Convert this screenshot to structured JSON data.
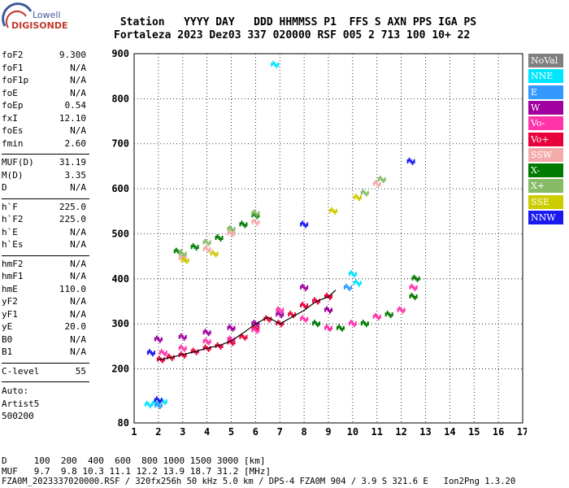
{
  "logo": {
    "line1": "Lowell",
    "line2": "DIGISONDE"
  },
  "header": {
    "labels": [
      "Station",
      "YYYY",
      "DAY",
      "DDD",
      "HHMMSS",
      "P1",
      "FFS",
      "S",
      "AXN",
      "PPS",
      "IGA",
      "PS"
    ],
    "values": [
      "Fortaleza",
      "2023",
      "Dez03",
      "337",
      "020000",
      "RSF",
      "005",
      "2",
      "713",
      "100",
      "10+",
      "22"
    ]
  },
  "params": {
    "group1": [
      {
        "name": "foF2",
        "value": "9.300"
      },
      {
        "name": "foF1",
        "value": "N/A"
      },
      {
        "name": "foF1p",
        "value": "N/A"
      },
      {
        "name": "foE",
        "value": "N/A"
      },
      {
        "name": "foEp",
        "value": "0.54"
      },
      {
        "name": "fxI",
        "value": "12.10"
      },
      {
        "name": "foEs",
        "value": "N/A"
      },
      {
        "name": "fmin",
        "value": "2.60"
      }
    ],
    "group2": [
      {
        "name": "MUF(D)",
        "value": "31.19"
      },
      {
        "name": "M(D)",
        "value": "3.35"
      },
      {
        "name": "D",
        "value": "N/A"
      }
    ],
    "group3": [
      {
        "name": "h`F",
        "value": "225.0"
      },
      {
        "name": "h`F2",
        "value": "225.0"
      },
      {
        "name": "h`E",
        "value": "N/A"
      },
      {
        "name": "h`Es",
        "value": "N/A"
      }
    ],
    "group4": [
      {
        "name": "hmF2",
        "value": "N/A"
      },
      {
        "name": "hmF1",
        "value": "N/A"
      },
      {
        "name": "hmE",
        "value": "110.0"
      },
      {
        "name": "yF2",
        "value": "N/A"
      },
      {
        "name": "yF1",
        "value": "N/A"
      },
      {
        "name": "yE",
        "value": "20.0"
      },
      {
        "name": "B0",
        "value": "N/A"
      },
      {
        "name": "B1",
        "value": "N/A"
      }
    ],
    "group5": [
      {
        "name": "C-level",
        "value": "55"
      }
    ],
    "auto": [
      "Auto:",
      "Artist5",
      "500200"
    ]
  },
  "legend": [
    {
      "label": "NoVal",
      "color": "#808080"
    },
    {
      "label": "NNE",
      "color": "#00e5ff"
    },
    {
      "label": "E",
      "color": "#3399ff"
    },
    {
      "label": "W",
      "color": "#a0009e"
    },
    {
      "label": "Vo-",
      "color": "#ff33aa"
    },
    {
      "label": "Vo+",
      "color": "#e8003a"
    },
    {
      "label": "SSW",
      "color": "#f4aaaa"
    },
    {
      "label": "X-",
      "color": "#007a00"
    },
    {
      "label": "X+",
      "color": "#88bb66"
    },
    {
      "label": "SSE",
      "color": "#cccc00"
    },
    {
      "label": "NNW",
      "color": "#1a1aee"
    }
  ],
  "chart_data": {
    "type": "scatter",
    "title": "",
    "xlabel": "",
    "ylabel": "",
    "xlim": [
      1,
      17
    ],
    "ylim": [
      80,
      900
    ],
    "xticks": [
      1,
      2,
      3,
      4,
      5,
      6,
      7,
      8,
      9,
      10,
      11,
      12,
      13,
      14,
      15,
      16,
      17
    ],
    "yticks": [
      80,
      200,
      300,
      400,
      500,
      600,
      700,
      800,
      900
    ],
    "grid": true,
    "series": [
      {
        "name": "Vo+",
        "color": "#e8003a",
        "points": [
          [
            2.1,
            220
          ],
          [
            2.5,
            225
          ],
          [
            3.0,
            230
          ],
          [
            3.5,
            238
          ],
          [
            4.0,
            245
          ],
          [
            4.5,
            250
          ],
          [
            5.0,
            258
          ],
          [
            5.5,
            270
          ],
          [
            6.0,
            290
          ],
          [
            6.5,
            310
          ],
          [
            7.0,
            300
          ],
          [
            7.5,
            320
          ],
          [
            8.0,
            340
          ],
          [
            8.5,
            350
          ],
          [
            9.0,
            360
          ]
        ]
      },
      {
        "name": "Vo-",
        "color": "#ff33aa",
        "points": [
          [
            2.2,
            235
          ],
          [
            3.0,
            245
          ],
          [
            4.0,
            260
          ],
          [
            5.0,
            265
          ],
          [
            6.0,
            285
          ],
          [
            7.0,
            330
          ],
          [
            8.0,
            310
          ],
          [
            9.0,
            290
          ],
          [
            10.0,
            300
          ],
          [
            11.0,
            315
          ],
          [
            12.0,
            330
          ],
          [
            12.5,
            380
          ]
        ]
      },
      {
        "name": "W",
        "color": "#a0009e",
        "points": [
          [
            2.0,
            265
          ],
          [
            3.0,
            270
          ],
          [
            4.0,
            280
          ],
          [
            5.0,
            290
          ],
          [
            6.0,
            300
          ],
          [
            7.0,
            320
          ],
          [
            8.0,
            380
          ],
          [
            9.0,
            330
          ]
        ]
      },
      {
        "name": "X-",
        "color": "#007a00",
        "points": [
          [
            2.8,
            460
          ],
          [
            3.5,
            470
          ],
          [
            4.5,
            490
          ],
          [
            5.5,
            520
          ],
          [
            6.0,
            540
          ],
          [
            8.5,
            300
          ],
          [
            9.5,
            290
          ],
          [
            10.5,
            300
          ],
          [
            11.5,
            320
          ],
          [
            12.5,
            360
          ],
          [
            12.6,
            400
          ]
        ]
      },
      {
        "name": "X+",
        "color": "#88bb66",
        "points": [
          [
            3.0,
            455
          ],
          [
            4.0,
            480
          ],
          [
            5.0,
            510
          ],
          [
            6.0,
            545
          ],
          [
            10.5,
            590
          ],
          [
            11.2,
            620
          ]
        ]
      },
      {
        "name": "NNE",
        "color": "#00e5ff",
        "points": [
          [
            1.6,
            120
          ],
          [
            1.9,
            123
          ],
          [
            2.2,
            127
          ],
          [
            10.0,
            410
          ],
          [
            10.2,
            390
          ],
          [
            6.8,
            875
          ]
        ]
      },
      {
        "name": "SSW",
        "color": "#f4aaaa",
        "points": [
          [
            3.0,
            445
          ],
          [
            4.0,
            465
          ],
          [
            5.0,
            500
          ],
          [
            6.0,
            525
          ],
          [
            11.0,
            610
          ]
        ]
      },
      {
        "name": "SSE",
        "color": "#cccc00",
        "points": [
          [
            3.1,
            440
          ],
          [
            4.3,
            455
          ],
          [
            9.2,
            550
          ],
          [
            10.2,
            580
          ]
        ]
      },
      {
        "name": "NNW",
        "color": "#1a1aee",
        "points": [
          [
            1.7,
            235
          ],
          [
            2.0,
            130
          ],
          [
            8.0,
            520
          ],
          [
            12.4,
            660
          ]
        ]
      },
      {
        "name": "E",
        "color": "#3399ff",
        "points": [
          [
            2.0,
            118
          ],
          [
            9.8,
            380
          ]
        ]
      }
    ],
    "trace": [
      [
        2.0,
        220
      ],
      [
        2.5,
        225
      ],
      [
        3.0,
        232
      ],
      [
        3.5,
        238
      ],
      [
        4.0,
        246
      ],
      [
        4.5,
        252
      ],
      [
        5.0,
        262
      ],
      [
        5.5,
        280
      ],
      [
        6.0,
        300
      ],
      [
        6.5,
        315
      ],
      [
        7.0,
        300
      ],
      [
        7.5,
        315
      ],
      [
        8.0,
        330
      ],
      [
        8.5,
        350
      ],
      [
        9.0,
        360
      ],
      [
        9.3,
        375
      ]
    ]
  },
  "footer": {
    "line1": "D     100  200  400  600  800 1000 1500 3000 [km]",
    "line2": "MUF   9.7  9.8 10.3 11.1 12.2 13.9 18.7 31.2 [MHz]",
    "line3": "FZA0M_2023337020000.RSF / 320fx256h 50 kHz 5.0 km / DPS-4 FZA0M 904 / 3.9 S 321.6 E   Ion2Png 1.3.20"
  }
}
